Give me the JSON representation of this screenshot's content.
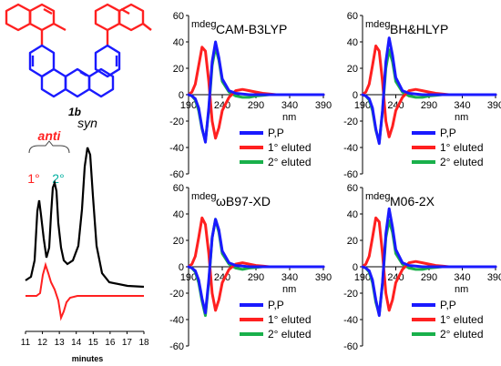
{
  "figure": {
    "colors": {
      "mol_top": "#ff2020",
      "mol_bottom": "#1a1aff",
      "red": "#ff2020",
      "green": "#19b04b",
      "blue": "#1a1aff",
      "black": "#000000",
      "teal": "#00b0a0"
    },
    "molecule": {
      "label": "1b"
    },
    "chromatogram": {
      "anti_label": "anti",
      "syn_label": "syn",
      "peak1_label": "1°",
      "peak2_label": "2°",
      "xlabel": "minutes",
      "ticks": [
        "11",
        "12",
        "13",
        "14",
        "15",
        "16",
        "17",
        "18"
      ]
    }
  },
  "chart_data": [
    {
      "type": "line",
      "title": "CAM-B3LYP",
      "ylabel": "mdeg",
      "xlabel": "nm",
      "xlim": [
        190,
        390
      ],
      "ylim": [
        -60,
        60
      ],
      "xticks": [
        "190",
        "240",
        "290",
        "340",
        "390"
      ],
      "yticks": [
        "60",
        "40",
        "20",
        "0",
        "-20",
        "-40",
        "-60"
      ],
      "legend": "bottom-right",
      "grid": false,
      "x": [
        190,
        195,
        200,
        205,
        210,
        215,
        220,
        225,
        230,
        235,
        240,
        250,
        260,
        270,
        280,
        290,
        300,
        310,
        320,
        330,
        340,
        350,
        360,
        370,
        380,
        390
      ],
      "series": [
        {
          "name": "P,P",
          "color": "#1a1aff",
          "values": [
            0,
            -1,
            -3,
            -10,
            -25,
            -36,
            -10,
            25,
            40,
            28,
            12,
            3,
            1,
            0.5,
            0,
            0,
            0,
            0,
            0,
            0,
            0,
            0,
            0,
            0,
            0,
            0
          ]
        },
        {
          "name": "1° eluted",
          "color": "#ff2020",
          "values": [
            0,
            2,
            8,
            22,
            36,
            33,
            10,
            -20,
            -33,
            -25,
            -12,
            -2,
            3,
            4,
            3,
            2,
            1,
            0.5,
            0,
            0,
            0,
            0,
            0,
            0,
            0,
            0
          ]
        },
        {
          "name": "2° eluted",
          "color": "#19b04b",
          "values": [
            0,
            -1,
            -4,
            -12,
            -26,
            -35,
            -12,
            22,
            36,
            26,
            10,
            2,
            -1,
            -2,
            -2,
            -1,
            -0.5,
            0,
            0,
            0,
            0,
            0,
            0,
            0,
            0,
            0
          ]
        }
      ]
    },
    {
      "type": "line",
      "title": "BH&HLYP",
      "ylabel": "mdeg",
      "xlabel": "nm",
      "xlim": [
        190,
        390
      ],
      "ylim": [
        -60,
        60
      ],
      "xticks": [
        "190",
        "240",
        "290",
        "340",
        "390"
      ],
      "yticks": [
        "60",
        "40",
        "20",
        "0",
        "-20",
        "-40",
        "-60"
      ],
      "legend": "bottom-right",
      "grid": false,
      "x": [
        190,
        195,
        200,
        205,
        210,
        215,
        220,
        225,
        230,
        235,
        240,
        250,
        260,
        270,
        280,
        290,
        300,
        310,
        320,
        330,
        340,
        350,
        360,
        370,
        380,
        390
      ],
      "series": [
        {
          "name": "P,P",
          "color": "#1a1aff",
          "values": [
            0,
            -1,
            -3,
            -10,
            -26,
            -37,
            -12,
            25,
            43,
            30,
            13,
            3,
            1,
            0.5,
            0,
            0,
            0,
            0,
            0,
            0,
            0,
            0,
            0,
            0,
            0,
            0
          ]
        },
        {
          "name": "1° eluted",
          "color": "#ff2020",
          "values": [
            0,
            2,
            8,
            22,
            37,
            33,
            10,
            -20,
            -32,
            -24,
            -12,
            -2,
            3,
            4,
            3,
            2,
            1,
            0.5,
            0,
            0,
            0,
            0,
            0,
            0,
            0,
            0
          ]
        },
        {
          "name": "2° eluted",
          "color": "#19b04b",
          "values": [
            0,
            -1,
            -4,
            -12,
            -27,
            -36,
            -13,
            20,
            34,
            25,
            10,
            2,
            -1,
            -2,
            -2,
            -1,
            -0.5,
            0,
            0,
            0,
            0,
            0,
            0,
            0,
            0,
            0
          ]
        }
      ]
    },
    {
      "type": "line",
      "title": "ωB97-XD",
      "ylabel": "mdeg",
      "xlabel": "nm",
      "xlim": [
        190,
        390
      ],
      "ylim": [
        -60,
        60
      ],
      "xticks": [
        "190",
        "240",
        "290",
        "340",
        "390"
      ],
      "yticks": [
        "60",
        "40",
        "20",
        "0",
        "-20",
        "-40",
        "-60"
      ],
      "legend": "bottom-right",
      "grid": false,
      "x": [
        190,
        195,
        200,
        205,
        210,
        215,
        220,
        225,
        230,
        235,
        240,
        250,
        260,
        270,
        280,
        290,
        300,
        310,
        320,
        330,
        340,
        350,
        360,
        370,
        380,
        390
      ],
      "series": [
        {
          "name": "P,P",
          "color": "#1a1aff",
          "values": [
            0,
            -1,
            -3,
            -10,
            -24,
            -35,
            -10,
            22,
            36,
            28,
            12,
            3,
            1,
            0.5,
            0,
            0,
            0,
            0,
            0,
            0,
            0,
            0,
            0,
            0,
            0,
            0
          ]
        },
        {
          "name": "1° eluted",
          "color": "#ff2020",
          "values": [
            0,
            2,
            8,
            22,
            37,
            32,
            10,
            -20,
            -33,
            -25,
            -12,
            -2,
            2,
            3,
            2,
            1,
            0.5,
            0,
            0,
            0,
            0,
            0,
            0,
            0,
            0,
            0
          ]
        },
        {
          "name": "2° eluted",
          "color": "#19b04b",
          "values": [
            0,
            -1,
            -4,
            -12,
            -26,
            -37,
            -12,
            22,
            36,
            26,
            10,
            2,
            -1,
            -2,
            -1,
            -0.5,
            0,
            0,
            0,
            0,
            0,
            0,
            0,
            0,
            0,
            0
          ]
        }
      ]
    },
    {
      "type": "line",
      "title": "M06-2X",
      "ylabel": "mdeg",
      "xlabel": "nm",
      "xlim": [
        190,
        390
      ],
      "ylim": [
        -60,
        60
      ],
      "xticks": [
        "190",
        "240",
        "290",
        "340",
        "390"
      ],
      "yticks": [
        "60",
        "40",
        "20",
        "0",
        "-20",
        "-40",
        "-60"
      ],
      "legend": "bottom-right",
      "grid": false,
      "x": [
        190,
        195,
        200,
        205,
        210,
        215,
        220,
        225,
        230,
        235,
        240,
        250,
        260,
        270,
        280,
        290,
        300,
        310,
        320,
        330,
        340,
        350,
        360,
        370,
        380,
        390
      ],
      "series": [
        {
          "name": "P,P",
          "color": "#1a1aff",
          "values": [
            0,
            -1,
            -3,
            -10,
            -25,
            -37,
            -12,
            25,
            44,
            30,
            13,
            3,
            1,
            0.5,
            0,
            0,
            0,
            0,
            0,
            0,
            0,
            0,
            0,
            0,
            0,
            0
          ]
        },
        {
          "name": "1° eluted",
          "color": "#ff2020",
          "values": [
            0,
            2,
            8,
            22,
            37,
            34,
            10,
            -20,
            -33,
            -25,
            -12,
            -2,
            3,
            4,
            3,
            2,
            1,
            0.5,
            0,
            0,
            0,
            0,
            0,
            0,
            0,
            0
          ]
        },
        {
          "name": "2° eluted",
          "color": "#19b04b",
          "values": [
            0,
            -1,
            -4,
            -12,
            -27,
            -36,
            -13,
            22,
            35,
            26,
            10,
            2,
            -1,
            -2,
            -2,
            -1,
            -0.5,
            0,
            0,
            0,
            0,
            0,
            0,
            0,
            0,
            0
          ]
        }
      ]
    }
  ]
}
